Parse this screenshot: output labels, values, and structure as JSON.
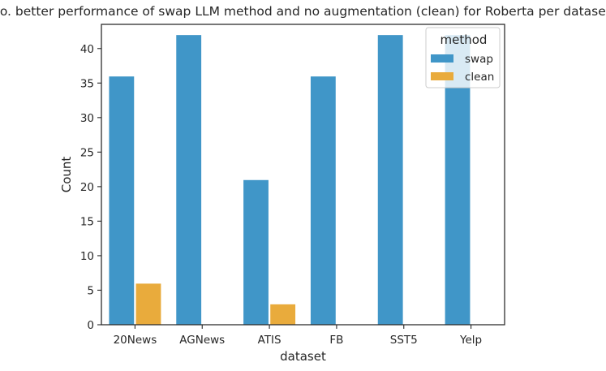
{
  "chart_data": {
    "type": "bar",
    "title": "No. better performance of swap LLM method and no augmentation (clean) for Roberta per dataset.",
    "xlabel": "dataset",
    "ylabel": "Count",
    "categories": [
      "20News",
      "AGNews",
      "ATIS",
      "FB",
      "SST5",
      "Yelp"
    ],
    "series": [
      {
        "name": "swap",
        "values": [
          36,
          42,
          21,
          36,
          42,
          42
        ],
        "color": "#4096c8"
      },
      {
        "name": "clean",
        "values": [
          6,
          0,
          3,
          0,
          0,
          0
        ],
        "color": "#e9ab3c"
      }
    ],
    "ylim": [
      0,
      43.5
    ],
    "yticks": [
      0,
      5,
      10,
      15,
      20,
      25,
      30,
      35,
      40
    ],
    "legend": {
      "title": "method",
      "position": "top-right"
    },
    "grid": false
  }
}
